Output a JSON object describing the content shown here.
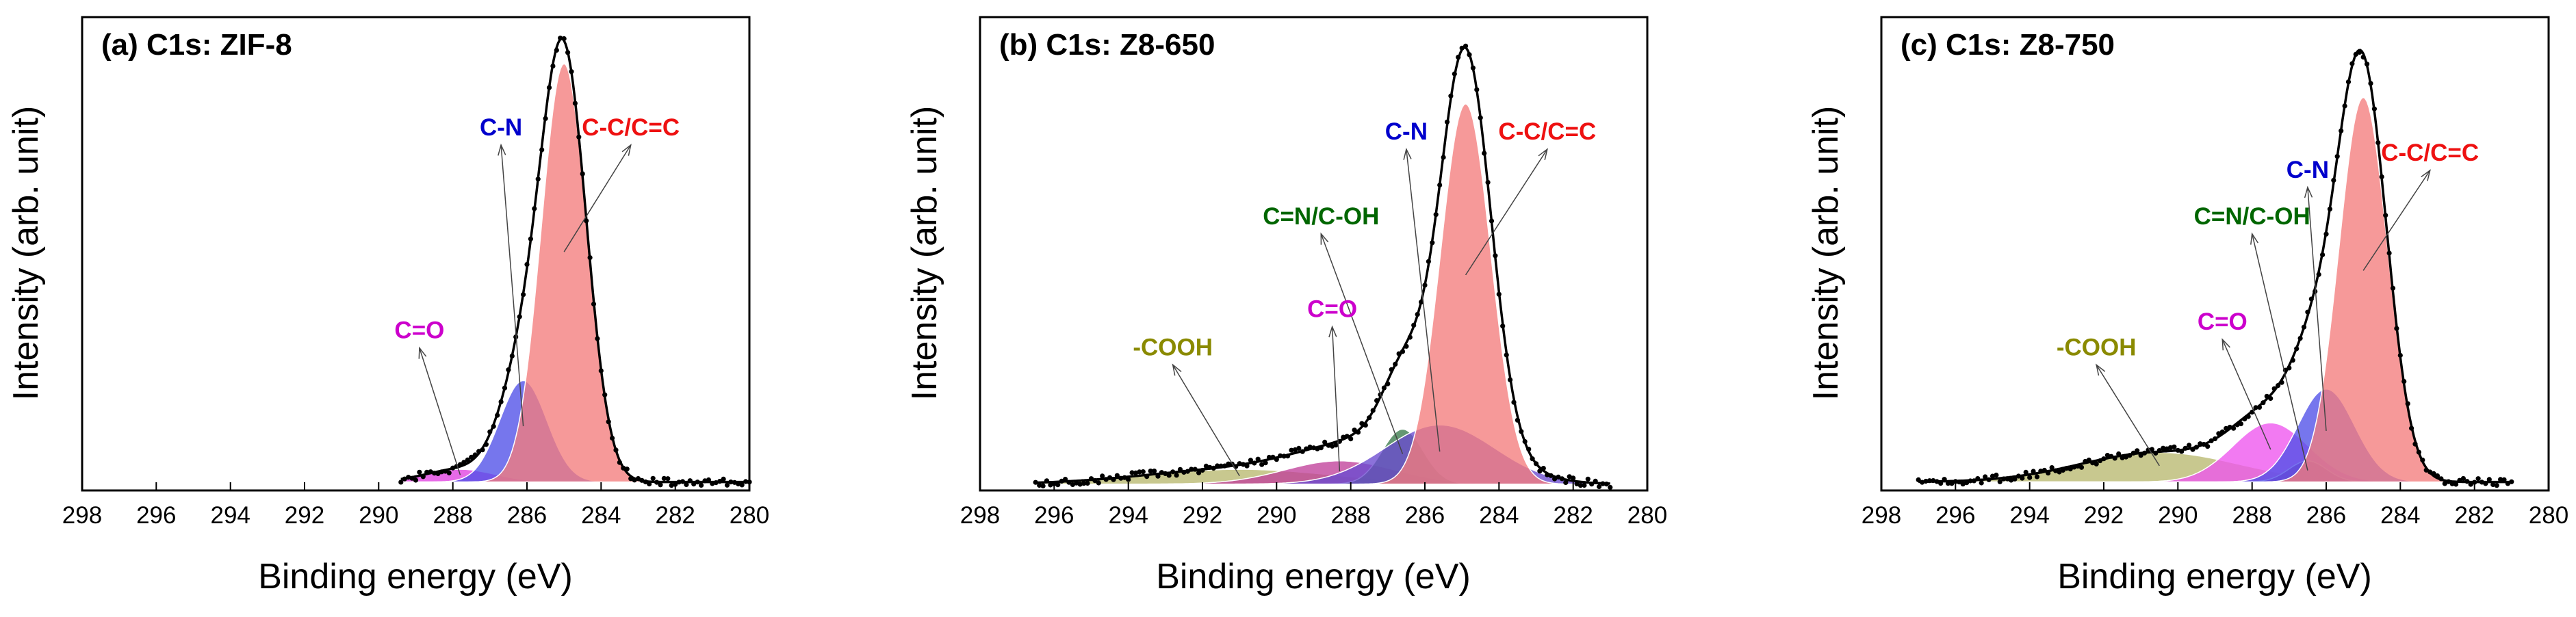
{
  "figure": "XPS C1s spectra",
  "chart_data": [
    {
      "type": "line",
      "title": "(a) C1s: ZIF-8",
      "xlabel": "Binding energy (eV)",
      "ylabel": "Intensity (arb. unit)",
      "xlim": [
        298,
        280
      ],
      "x_ticks": [
        "298",
        "296",
        "294",
        "292",
        "290",
        "288",
        "286",
        "284",
        "282",
        "280"
      ],
      "ylim": [
        0,
        1.12
      ],
      "data_range": [
        289.4,
        280.0
      ],
      "background": 0.02,
      "components": [
        {
          "name": "C=O",
          "center": 287.8,
          "fwhm": 2.2,
          "height": 0.03,
          "color": "#e040e0",
          "label_pos": [
            288.9,
            0.36
          ]
        },
        {
          "name": "C-N",
          "center": 286.1,
          "fwhm": 1.5,
          "height": 0.24,
          "color": "#4f4fe8",
          "label_pos": [
            286.7,
            0.84
          ]
        },
        {
          "name": "C-C/C=C",
          "center": 285.0,
          "fwhm": 1.45,
          "height": 0.99,
          "color": "#f47c7c",
          "label_pos": [
            283.2,
            0.84
          ]
        }
      ]
    },
    {
      "type": "line",
      "title": "(b) C1s: Z8-650",
      "xlabel": "Binding energy (eV)",
      "ylabel": "",
      "xlim": [
        298,
        280
      ],
      "x_ticks": [
        "298",
        "296",
        "294",
        "292",
        "290",
        "288",
        "286",
        "284",
        "282",
        "280"
      ],
      "ylim": [
        0,
        1.12
      ],
      "data_range": [
        296.5,
        281.0
      ],
      "background": 0.015,
      "components": [
        {
          "name": "-COOH",
          "center": 291.0,
          "fwhm": 6.0,
          "height": 0.035,
          "color": "#b8b870",
          "label_pos": [
            292.8,
            0.32
          ]
        },
        {
          "name": "C=O",
          "center": 288.3,
          "fwhm": 3.5,
          "height": 0.055,
          "color": "#c0409a",
          "label_pos": [
            288.5,
            0.41
          ]
        },
        {
          "name": "C=N/C-OH",
          "center": 286.6,
          "fwhm": 1.3,
          "height": 0.13,
          "color": "#3a7a4a",
          "label_pos": [
            288.8,
            0.63
          ]
        },
        {
          "name": "C-N",
          "center": 285.6,
          "fwhm": 3.5,
          "height": 0.14,
          "color": "#6a4ad0",
          "label_pos": [
            286.5,
            0.83
          ]
        },
        {
          "name": "C-C/C=C",
          "center": 284.9,
          "fwhm": 1.6,
          "height": 0.9,
          "color": "#f47c7c",
          "label_pos": [
            282.7,
            0.83
          ]
        }
      ]
    },
    {
      "type": "line",
      "title": "(c) C1s: Z8-750",
      "xlabel": "Binding energy (eV)",
      "ylabel": "Intensity (arb. unit)",
      "xlim": [
        298,
        280
      ],
      "x_ticks": [
        "298",
        "296",
        "294",
        "292",
        "290",
        "288",
        "286",
        "284",
        "282",
        "280"
      ],
      "ylim": [
        0,
        1.12
      ],
      "data_range": [
        297.0,
        281.0
      ],
      "background": 0.02,
      "components": [
        {
          "name": "-COOH",
          "center": 290.5,
          "fwhm": 5.0,
          "height": 0.07,
          "color": "#b8b870",
          "label_pos": [
            292.2,
            0.32
          ]
        },
        {
          "name": "C=O",
          "center": 287.5,
          "fwhm": 2.4,
          "height": 0.14,
          "color": "#ee55ee",
          "label_pos": [
            288.8,
            0.38
          ]
        },
        {
          "name": "C=N/C-OH",
          "center": 286.5,
          "fwhm": 1.2,
          "height": 0.05,
          "color": "#9a3aa0",
          "label_pos": [
            288.0,
            0.63
          ]
        },
        {
          "name": "C-N",
          "center": 286.0,
          "fwhm": 1.8,
          "height": 0.22,
          "color": "#4f4fe8",
          "label_pos": [
            286.5,
            0.74
          ]
        },
        {
          "name": "C-C/C=C",
          "center": 285.0,
          "fwhm": 1.55,
          "height": 0.91,
          "color": "#f47c7c",
          "label_pos": [
            283.2,
            0.78
          ]
        }
      ]
    }
  ],
  "colors": {
    "label_c_o": "#cc00cc",
    "label_c_n": "#0000cc",
    "label_cc": "#ee1111",
    "label_cn_oh": "#006600",
    "label_cooh": "#8a8a00"
  }
}
